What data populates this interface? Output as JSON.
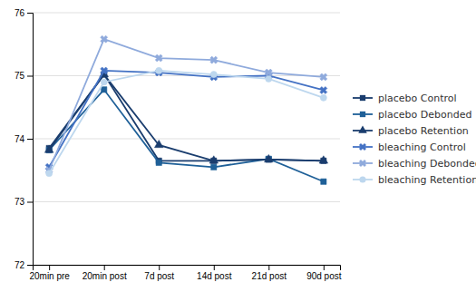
{
  "chart_data": {
    "type": "line",
    "categories": [
      "20min pre",
      "20min post",
      "7d post",
      "14d post",
      "21d post",
      "90d post"
    ],
    "series": [
      {
        "name": "placebo Control",
        "color": "#1a3d6e",
        "marker": "square",
        "values": [
          73.85,
          75.02,
          73.65,
          73.65,
          73.67,
          73.65
        ]
      },
      {
        "name": "placebo Debonded",
        "color": "#1f6098",
        "marker": "square",
        "values": [
          73.82,
          74.78,
          73.62,
          73.55,
          73.68,
          73.32
        ]
      },
      {
        "name": "placebo Retention",
        "color": "#1a3d6e",
        "marker": "triangle",
        "values": [
          73.82,
          75.02,
          73.9,
          73.65,
          73.67,
          73.65
        ]
      },
      {
        "name": "bleaching Control",
        "color": "#4472C4",
        "marker": "x",
        "values": [
          73.55,
          75.08,
          75.05,
          74.98,
          75.0,
          74.77
        ]
      },
      {
        "name": "bleaching Debonded",
        "color": "#8FAADC",
        "marker": "x",
        "values": [
          73.5,
          75.58,
          75.28,
          75.25,
          75.05,
          74.98
        ]
      },
      {
        "name": "bleaching Retention",
        "color": "#BDD7EE",
        "marker": "circle",
        "values": [
          73.45,
          74.9,
          75.08,
          75.02,
          74.95,
          74.65
        ]
      }
    ],
    "ylim": [
      72,
      76
    ],
    "yticks": [
      72,
      73,
      74,
      75,
      76
    ],
    "grid": true,
    "legend": "right"
  }
}
